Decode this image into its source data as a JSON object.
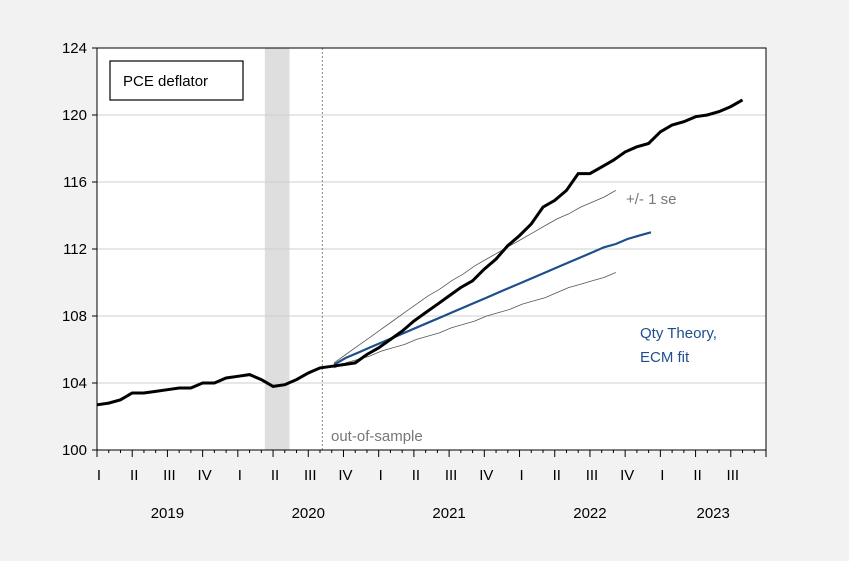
{
  "chart_data": {
    "type": "line",
    "title": "PCE deflator",
    "ylim": [
      100,
      124
    ],
    "yticks": [
      "100",
      "104",
      "108",
      "112",
      "116",
      "120",
      "124"
    ],
    "quarter_labels": [
      "I",
      "II",
      "III",
      "IV",
      "I",
      "II",
      "III",
      "IV",
      "I",
      "II",
      "III",
      "IV",
      "I",
      "II",
      "III",
      "IV",
      "I",
      "II",
      "III"
    ],
    "year_labels": [
      {
        "label": "2019",
        "month": 6
      },
      {
        "label": "2020",
        "month": 18
      },
      {
        "label": "2021",
        "month": 30
      },
      {
        "label": "2022",
        "month": 42
      },
      {
        "label": "2023",
        "month": 52.5
      }
    ],
    "recession": {
      "start": 14.3,
      "end": 16.4
    },
    "sample_break": {
      "month": 19.2,
      "label": "out-of-sample"
    },
    "annotations": {
      "band": "+/- 1 se",
      "fit_line1": "Qty Theory,",
      "fit_line2": "ECM fit"
    },
    "colors": {
      "actual": "#000000",
      "fit": "#1f4e8c",
      "band": "#555555",
      "recession": "#dedede"
    },
    "series": [
      {
        "key": "actual",
        "start_month": 0,
        "values": [
          102.7,
          102.8,
          103.0,
          103.4,
          103.4,
          103.5,
          103.6,
          103.7,
          103.7,
          104.0,
          104.0,
          104.3,
          104.4,
          104.5,
          104.2,
          103.8,
          103.9,
          104.2,
          104.6,
          104.9,
          105.0,
          105.1,
          105.2,
          105.7,
          106.1,
          106.6,
          107.1,
          107.7,
          108.2,
          108.7,
          109.2,
          109.7,
          110.1,
          110.8,
          111.4,
          112.2,
          112.8,
          113.5,
          114.5,
          114.9,
          115.5,
          116.5,
          116.5,
          116.9,
          117.3,
          117.8,
          118.1,
          118.3,
          119.0,
          119.4,
          119.6,
          119.9,
          120.0,
          120.2,
          120.5,
          120.9
        ]
      },
      {
        "key": "fit",
        "start_month": 20.2,
        "values": [
          105.1,
          105.5,
          105.8,
          106.1,
          106.4,
          106.7,
          107.0,
          107.3,
          107.6,
          107.9,
          108.2,
          108.5,
          108.8,
          109.1,
          109.4,
          109.7,
          110.0,
          110.3,
          110.6,
          110.9,
          111.2,
          111.5,
          111.8,
          112.1,
          112.3,
          112.6,
          112.8,
          113.0
        ]
      },
      {
        "key": "upper",
        "start_month": 20.2,
        "values": [
          105.2,
          105.7,
          106.2,
          106.7,
          107.2,
          107.7,
          108.2,
          108.7,
          109.2,
          109.6,
          110.1,
          110.5,
          111.0,
          111.4,
          111.8,
          112.2,
          112.6,
          113.0,
          113.4,
          113.8,
          114.1,
          114.5,
          114.8,
          115.1,
          115.5
        ]
      },
      {
        "key": "lower",
        "start_month": 20.2,
        "values": [
          104.9,
          105.2,
          105.4,
          105.6,
          105.9,
          106.1,
          106.3,
          106.6,
          106.8,
          107.0,
          107.3,
          107.5,
          107.7,
          108.0,
          108.2,
          108.4,
          108.7,
          108.9,
          109.1,
          109.4,
          109.7,
          109.9,
          110.1,
          110.3,
          110.6
        ]
      }
    ]
  }
}
